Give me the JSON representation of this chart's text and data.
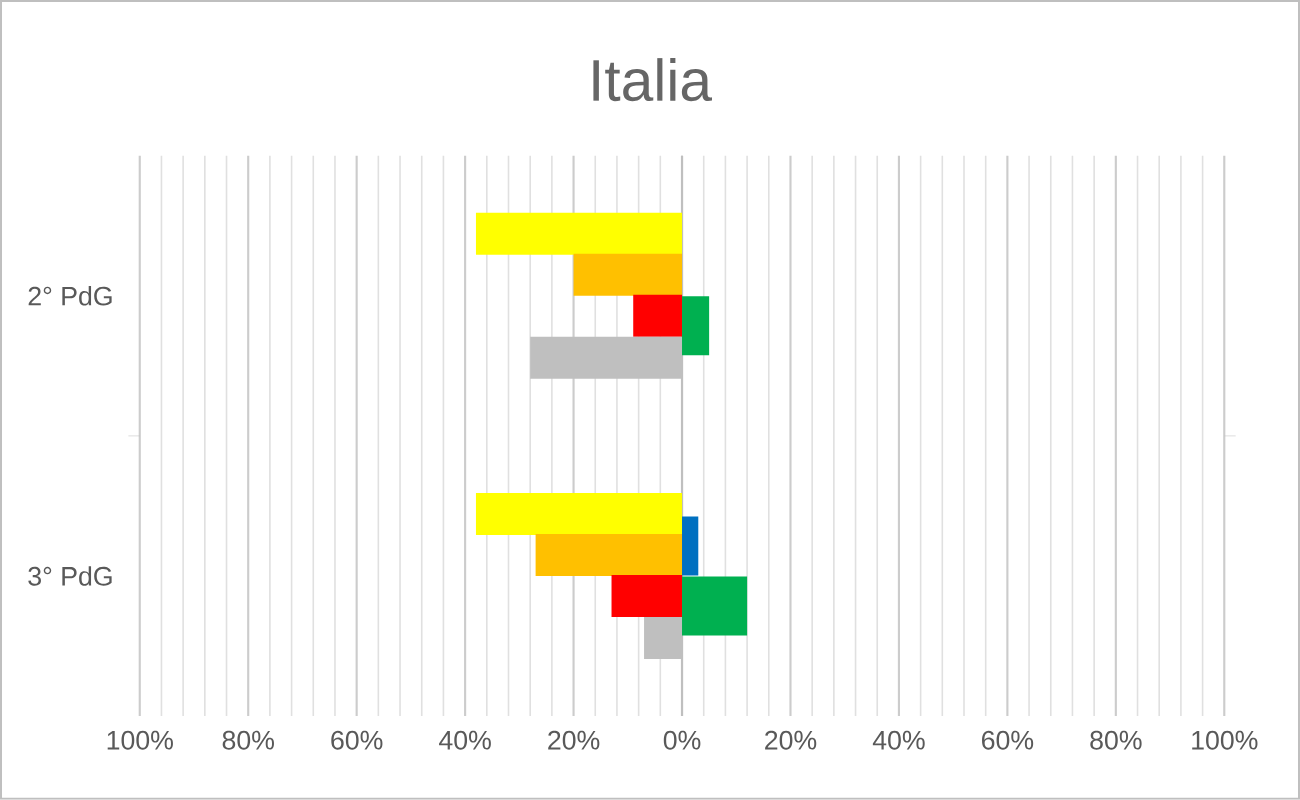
{
  "chart_data": {
    "type": "bar",
    "orientation": "horizontal",
    "title": "Italia",
    "categories": [
      "2° PdG",
      "3° PdG"
    ],
    "series": [
      {
        "color": "#ffff00",
        "values": [
          -38,
          -38
        ]
      },
      {
        "color": "#ffc000",
        "values": [
          -20,
          -27
        ]
      },
      {
        "color": "#ff0000",
        "values": [
          -9,
          -13
        ]
      },
      {
        "color": "#bfbfbf",
        "values": [
          -28,
          -7
        ]
      },
      {
        "color": "#0070c0",
        "values": [
          0,
          3
        ]
      },
      {
        "color": "#00b050",
        "values": [
          5,
          12
        ]
      }
    ],
    "xlim": [
      -100,
      100
    ],
    "xticks": [
      {
        "value": -100,
        "label": "100%"
      },
      {
        "value": -80,
        "label": "80%"
      },
      {
        "value": -60,
        "label": "60%"
      },
      {
        "value": -40,
        "label": "40%"
      },
      {
        "value": -20,
        "label": "20%"
      },
      {
        "value": 0,
        "label": "0%"
      },
      {
        "value": 20,
        "label": "20%"
      },
      {
        "value": 40,
        "label": "40%"
      },
      {
        "value": 60,
        "label": "60%"
      },
      {
        "value": 80,
        "label": "80%"
      },
      {
        "value": 100,
        "label": "100%"
      }
    ],
    "grid": "x"
  }
}
